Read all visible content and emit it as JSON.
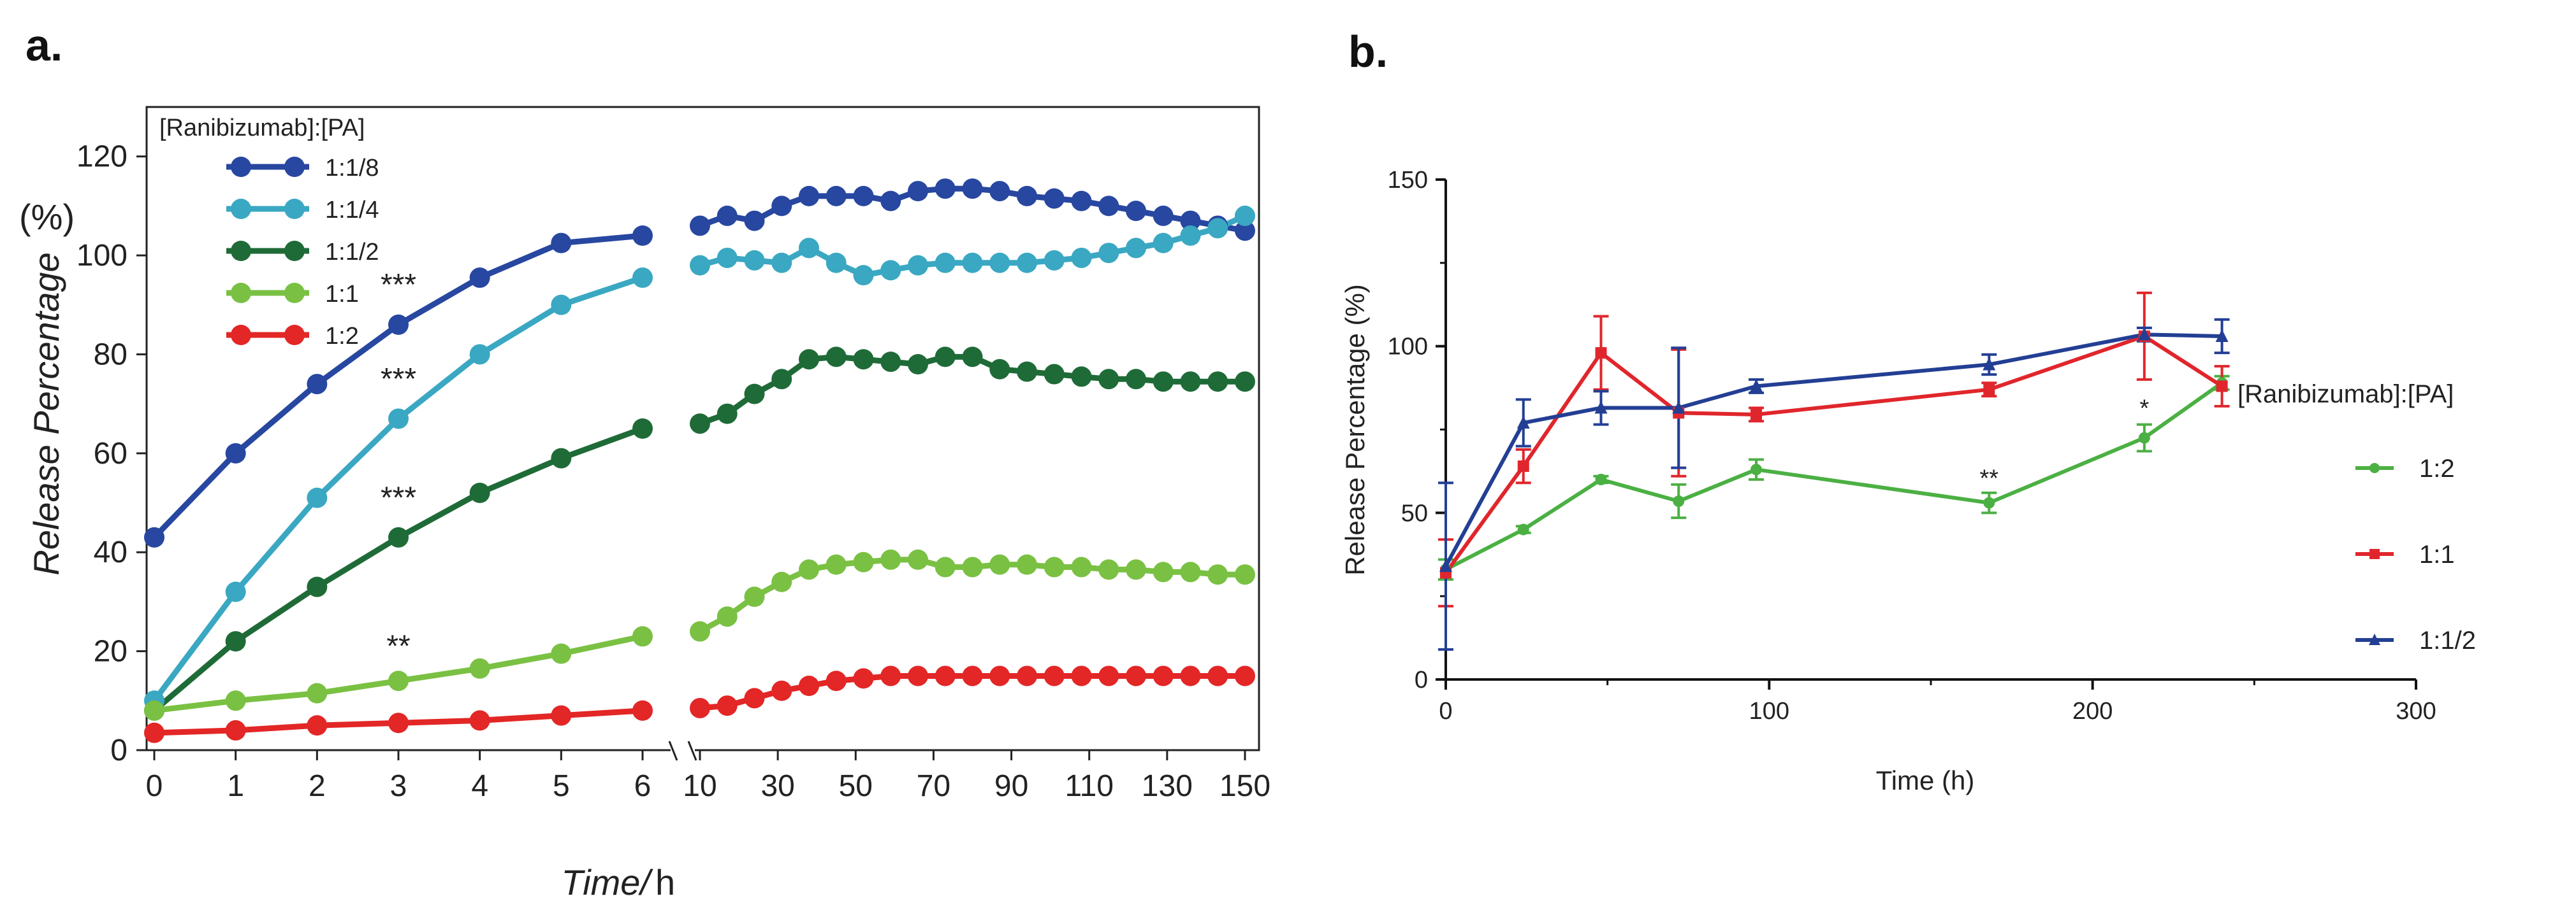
{
  "chart_data": [
    {
      "panel": "a.",
      "type": "line",
      "title": "",
      "xlabel_italic": "Time/",
      "xlabel_unit": "h",
      "ylabel": "Release Percentage",
      "yunit": "(%)",
      "ylim": [
        0,
        130
      ],
      "yticks": [
        0,
        20,
        40,
        60,
        80,
        100,
        120
      ],
      "x_segments": [
        {
          "range": [
            0,
            6
          ],
          "ticks": [
            "0",
            "1",
            "2",
            "3",
            "4",
            "5",
            "6"
          ]
        },
        {
          "range": [
            10,
            150
          ],
          "ticks": [
            "10",
            "30",
            "50",
            "70",
            "90",
            "110",
            "130",
            "150"
          ]
        }
      ],
      "legend_title": "[Ranibizumab]:[PA]",
      "legend_position": "top-left",
      "series": [
        {
          "name": "1:1/8",
          "color": "#2747a0",
          "x": [
            0,
            1,
            2,
            3,
            4,
            5,
            6,
            10,
            17,
            24,
            31,
            38,
            45,
            52,
            59,
            66,
            73,
            80,
            87,
            94,
            101,
            108,
            115,
            122,
            129,
            136,
            143,
            150
          ],
          "y": [
            43,
            60,
            74,
            86,
            95.5,
            102.5,
            104,
            106,
            108,
            107,
            110,
            112,
            112,
            112,
            111,
            113,
            113.5,
            113.5,
            113,
            112,
            111.5,
            111,
            110,
            109,
            108,
            107,
            106,
            105
          ]
        },
        {
          "name": "1:1/4",
          "color": "#3aa8c2",
          "x": [
            0,
            1,
            2,
            3,
            4,
            5,
            6,
            10,
            17,
            24,
            31,
            38,
            45,
            52,
            59,
            66,
            73,
            80,
            87,
            94,
            101,
            108,
            115,
            122,
            129,
            136,
            143,
            150
          ],
          "y": [
            10,
            32,
            51,
            67,
            80,
            90,
            95.5,
            98,
            99.5,
            99,
            98.5,
            101.5,
            98.5,
            96,
            97,
            98,
            98.5,
            98.5,
            98.5,
            98.5,
            99,
            99.5,
            100.5,
            101.5,
            102.5,
            104,
            105.5,
            108
          ]
        },
        {
          "name": "1:1/2",
          "color": "#1f6b38",
          "x": [
            0,
            1,
            2,
            3,
            4,
            5,
            6,
            10,
            17,
            24,
            31,
            38,
            45,
            52,
            59,
            66,
            73,
            80,
            87,
            94,
            101,
            108,
            115,
            122,
            129,
            136,
            143,
            150
          ],
          "y": [
            8,
            22,
            33,
            43,
            52,
            59,
            65,
            66,
            68,
            72,
            75,
            79,
            79.5,
            79,
            78.5,
            78,
            79.5,
            79.5,
            77,
            76.5,
            76,
            75.5,
            75,
            75,
            74.5,
            74.5,
            74.5,
            74.5
          ]
        },
        {
          "name": "1:1",
          "color": "#7ac143",
          "x": [
            0,
            1,
            2,
            3,
            4,
            5,
            6,
            10,
            17,
            24,
            31,
            38,
            45,
            52,
            59,
            66,
            73,
            80,
            87,
            94,
            101,
            108,
            115,
            122,
            129,
            136,
            143,
            150
          ],
          "y": [
            8,
            10,
            11.5,
            14,
            16.5,
            19.5,
            23,
            24,
            27,
            31,
            34,
            36.5,
            37.5,
            38,
            38.5,
            38.5,
            37,
            37,
            37.5,
            37.5,
            37,
            37,
            36.5,
            36.5,
            36,
            36,
            35.5,
            35.5
          ]
        },
        {
          "name": "1:2",
          "color": "#e32626",
          "x": [
            0,
            1,
            2,
            3,
            4,
            5,
            6,
            10,
            17,
            24,
            31,
            38,
            45,
            52,
            59,
            66,
            73,
            80,
            87,
            94,
            101,
            108,
            115,
            122,
            129,
            136,
            143,
            150
          ],
          "y": [
            3.5,
            4,
            5,
            5.5,
            6,
            7,
            8,
            8.5,
            9,
            10.5,
            12,
            13,
            14,
            14.5,
            15,
            15,
            15,
            15,
            15,
            15,
            15,
            15,
            15,
            15,
            15,
            15,
            15,
            15
          ]
        }
      ],
      "annotations": [
        {
          "text": "***",
          "x": 3,
          "y": 92
        },
        {
          "text": "***",
          "x": 3,
          "y": 73
        },
        {
          "text": "***",
          "x": 3,
          "y": 49
        },
        {
          "text": "**",
          "x": 3,
          "y": 19
        }
      ]
    },
    {
      "panel": "b.",
      "type": "line",
      "title": "",
      "xlabel": "Time (h)",
      "ylabel": "Release Percentage (%)",
      "xlim": [
        0,
        300
      ],
      "ylim": [
        0,
        150
      ],
      "xticks": [
        "0",
        "100",
        "200",
        "300"
      ],
      "yticks": [
        "0",
        "50",
        "100",
        "150"
      ],
      "legend_title": "[Ranibizumab]:[PA]",
      "legend_position": "right",
      "series": [
        {
          "name": "1:2",
          "color": "#4bb043",
          "marker": "circle",
          "x": [
            0,
            24,
            48,
            72,
            96,
            168,
            216,
            240
          ],
          "y": [
            33,
            45,
            60,
            53.5,
            63,
            53,
            72.5,
            89
          ],
          "err": [
            3,
            1,
            1,
            5,
            3,
            3,
            4,
            2
          ]
        },
        {
          "name": "1:1",
          "color": "#e0262c",
          "marker": "square",
          "x": [
            0,
            24,
            48,
            72,
            96,
            168,
            216,
            240
          ],
          "y": [
            32,
            64,
            98,
            80,
            79.5,
            87,
            103,
            88
          ],
          "err": [
            10,
            5,
            11,
            19,
            2,
            2,
            13,
            6
          ]
        },
        {
          "name": "1:1/2",
          "color": "#233f94",
          "marker": "triangle",
          "x": [
            0,
            24,
            48,
            72,
            96,
            168,
            216,
            240
          ],
          "y": [
            34,
            77,
            81.5,
            81.5,
            88,
            94.5,
            103.5,
            103
          ],
          "err": [
            25,
            7,
            5,
            18,
            2,
            3,
            2,
            5
          ]
        }
      ],
      "annotations": [
        {
          "text": "**",
          "x": 168,
          "y": 58
        },
        {
          "text": "*",
          "x": 216,
          "y": 79
        }
      ]
    }
  ]
}
